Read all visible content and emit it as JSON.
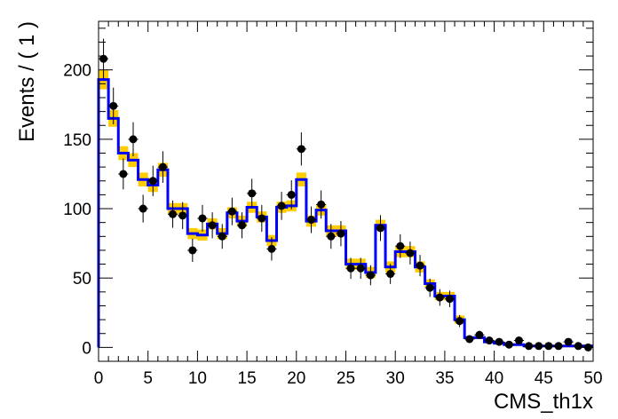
{
  "chart_data": {
    "type": "line",
    "title": "",
    "xlabel": "CMS_th1x",
    "ylabel": "Events / ( 1 )",
    "xlim": [
      0,
      50
    ],
    "ylim": [
      -10,
      235
    ],
    "xticks": [
      0,
      5,
      10,
      15,
      20,
      25,
      30,
      35,
      40,
      45,
      50
    ],
    "yticks": [
      0,
      50,
      100,
      150,
      200
    ],
    "grid": false,
    "legend": "none",
    "colors": {
      "band": "#ffcc00",
      "fit": "#0000ff",
      "data": "#000000"
    },
    "series": [
      {
        "kind": "data-points-with-errors",
        "x": [
          0.5,
          1.5,
          2.5,
          3.5,
          4.5,
          5.5,
          6.5,
          7.5,
          8.5,
          9.5,
          10.5,
          11.5,
          12.5,
          13.5,
          14.5,
          15.5,
          16.5,
          17.5,
          18.5,
          19.5,
          20.5,
          21.5,
          22.5,
          23.5,
          24.5,
          25.5,
          26.5,
          27.5,
          28.5,
          29.5,
          30.5,
          31.5,
          32.5,
          33.5,
          34.5,
          35.5,
          36.5,
          37.5,
          38.5,
          39.5,
          40.5,
          41.5,
          42.5,
          43.5,
          44.5,
          45.5,
          46.5,
          47.5,
          48.5,
          49.5
        ],
        "values": [
          208,
          174,
          125,
          150,
          100,
          120,
          130,
          96,
          95,
          70,
          93,
          88,
          80,
          98,
          88,
          111,
          93,
          71,
          102,
          110,
          143,
          92,
          103,
          80,
          82,
          57,
          57,
          52,
          86,
          53,
          73,
          68,
          59,
          43,
          36,
          35,
          19,
          6,
          9,
          5,
          4,
          2,
          5,
          1,
          1,
          1,
          1,
          4,
          1,
          0
        ]
      },
      {
        "kind": "fit-step",
        "x_edges": [
          0,
          1,
          2,
          3,
          4,
          5,
          6,
          7,
          8,
          9,
          10,
          11,
          12,
          13,
          14,
          15,
          16,
          17,
          18,
          19,
          20,
          21,
          22,
          23,
          24,
          25,
          26,
          27,
          28,
          29,
          30,
          31,
          32,
          33,
          34,
          35,
          36,
          37,
          38,
          39,
          40,
          41,
          42,
          43,
          44,
          45,
          46,
          47,
          48,
          49,
          50
        ],
        "values": [
          193,
          165,
          140,
          135,
          121,
          117,
          128,
          100,
          100,
          82,
          81,
          89,
          82,
          97,
          91,
          101,
          94,
          77,
          101,
          102,
          121,
          91,
          99,
          84,
          84,
          60,
          60,
          54,
          88,
          58,
          69,
          69,
          58,
          46,
          37,
          37,
          20,
          7,
          7,
          4,
          3,
          2,
          2,
          1,
          1,
          1,
          1,
          1,
          1,
          1
        ],
        "band_halfwidth": [
          7,
          6,
          5,
          5,
          5,
          5,
          5,
          4,
          4,
          4,
          4,
          4,
          4,
          4,
          4,
          4,
          4,
          4,
          4,
          4,
          5,
          4,
          4,
          4,
          4,
          4,
          4,
          4,
          4,
          4,
          4,
          4,
          4,
          3,
          3,
          3,
          3,
          1,
          1,
          1,
          1,
          1,
          1,
          1,
          1,
          1,
          1,
          1,
          1,
          1
        ]
      }
    ]
  }
}
